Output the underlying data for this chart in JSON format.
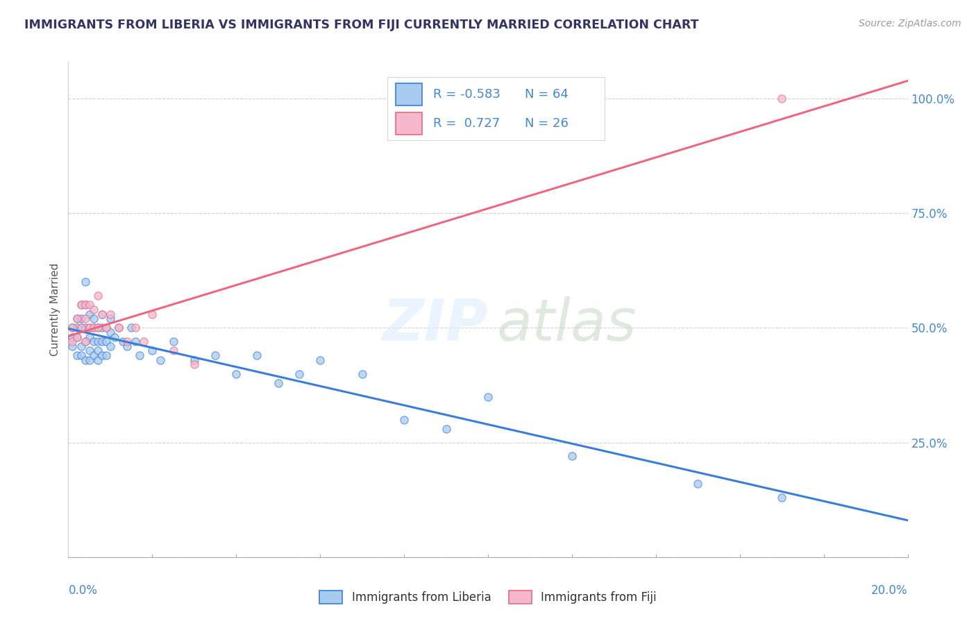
{
  "title": "IMMIGRANTS FROM LIBERIA VS IMMIGRANTS FROM FIJI CURRENTLY MARRIED CORRELATION CHART",
  "source": "Source: ZipAtlas.com",
  "ylabel": "Currently Married",
  "xmin": 0.0,
  "xmax": 0.2,
  "ymin": 0.0,
  "ymax": 1.08,
  "liberia_R": -0.583,
  "liberia_N": 64,
  "fiji_R": 0.727,
  "fiji_N": 26,
  "liberia_color": "#a8cbf0",
  "fiji_color": "#f5b8cc",
  "liberia_line_color": "#3a7dd8",
  "fiji_line_color": "#ee6680",
  "liberia_x": [
    0.001,
    0.001,
    0.001,
    0.002,
    0.002,
    0.002,
    0.002,
    0.003,
    0.003,
    0.003,
    0.003,
    0.003,
    0.004,
    0.004,
    0.004,
    0.004,
    0.004,
    0.005,
    0.005,
    0.005,
    0.005,
    0.005,
    0.006,
    0.006,
    0.006,
    0.006,
    0.007,
    0.007,
    0.007,
    0.007,
    0.008,
    0.008,
    0.008,
    0.008,
    0.009,
    0.009,
    0.009,
    0.01,
    0.01,
    0.01,
    0.011,
    0.012,
    0.013,
    0.014,
    0.015,
    0.016,
    0.017,
    0.02,
    0.022,
    0.025,
    0.03,
    0.035,
    0.04,
    0.045,
    0.05,
    0.055,
    0.06,
    0.07,
    0.08,
    0.09,
    0.1,
    0.12,
    0.15,
    0.17
  ],
  "liberia_y": [
    0.5,
    0.48,
    0.46,
    0.52,
    0.5,
    0.48,
    0.44,
    0.55,
    0.52,
    0.5,
    0.46,
    0.44,
    0.6,
    0.55,
    0.5,
    0.47,
    0.43,
    0.53,
    0.5,
    0.48,
    0.45,
    0.43,
    0.52,
    0.5,
    0.47,
    0.44,
    0.5,
    0.47,
    0.45,
    0.43,
    0.53,
    0.5,
    0.47,
    0.44,
    0.5,
    0.47,
    0.44,
    0.52,
    0.49,
    0.46,
    0.48,
    0.5,
    0.47,
    0.46,
    0.5,
    0.47,
    0.44,
    0.45,
    0.43,
    0.47,
    0.43,
    0.44,
    0.4,
    0.44,
    0.38,
    0.4,
    0.43,
    0.4,
    0.3,
    0.28,
    0.35,
    0.22,
    0.16,
    0.13
  ],
  "fiji_x": [
    0.001,
    0.001,
    0.002,
    0.002,
    0.003,
    0.003,
    0.004,
    0.004,
    0.004,
    0.005,
    0.005,
    0.006,
    0.006,
    0.007,
    0.007,
    0.008,
    0.009,
    0.01,
    0.012,
    0.014,
    0.016,
    0.018,
    0.02,
    0.025,
    0.03,
    0.17
  ],
  "fiji_y": [
    0.5,
    0.47,
    0.52,
    0.48,
    0.55,
    0.5,
    0.55,
    0.52,
    0.47,
    0.55,
    0.5,
    0.54,
    0.5,
    0.57,
    0.5,
    0.53,
    0.5,
    0.53,
    0.5,
    0.47,
    0.5,
    0.47,
    0.53,
    0.45,
    0.42,
    1.0
  ]
}
